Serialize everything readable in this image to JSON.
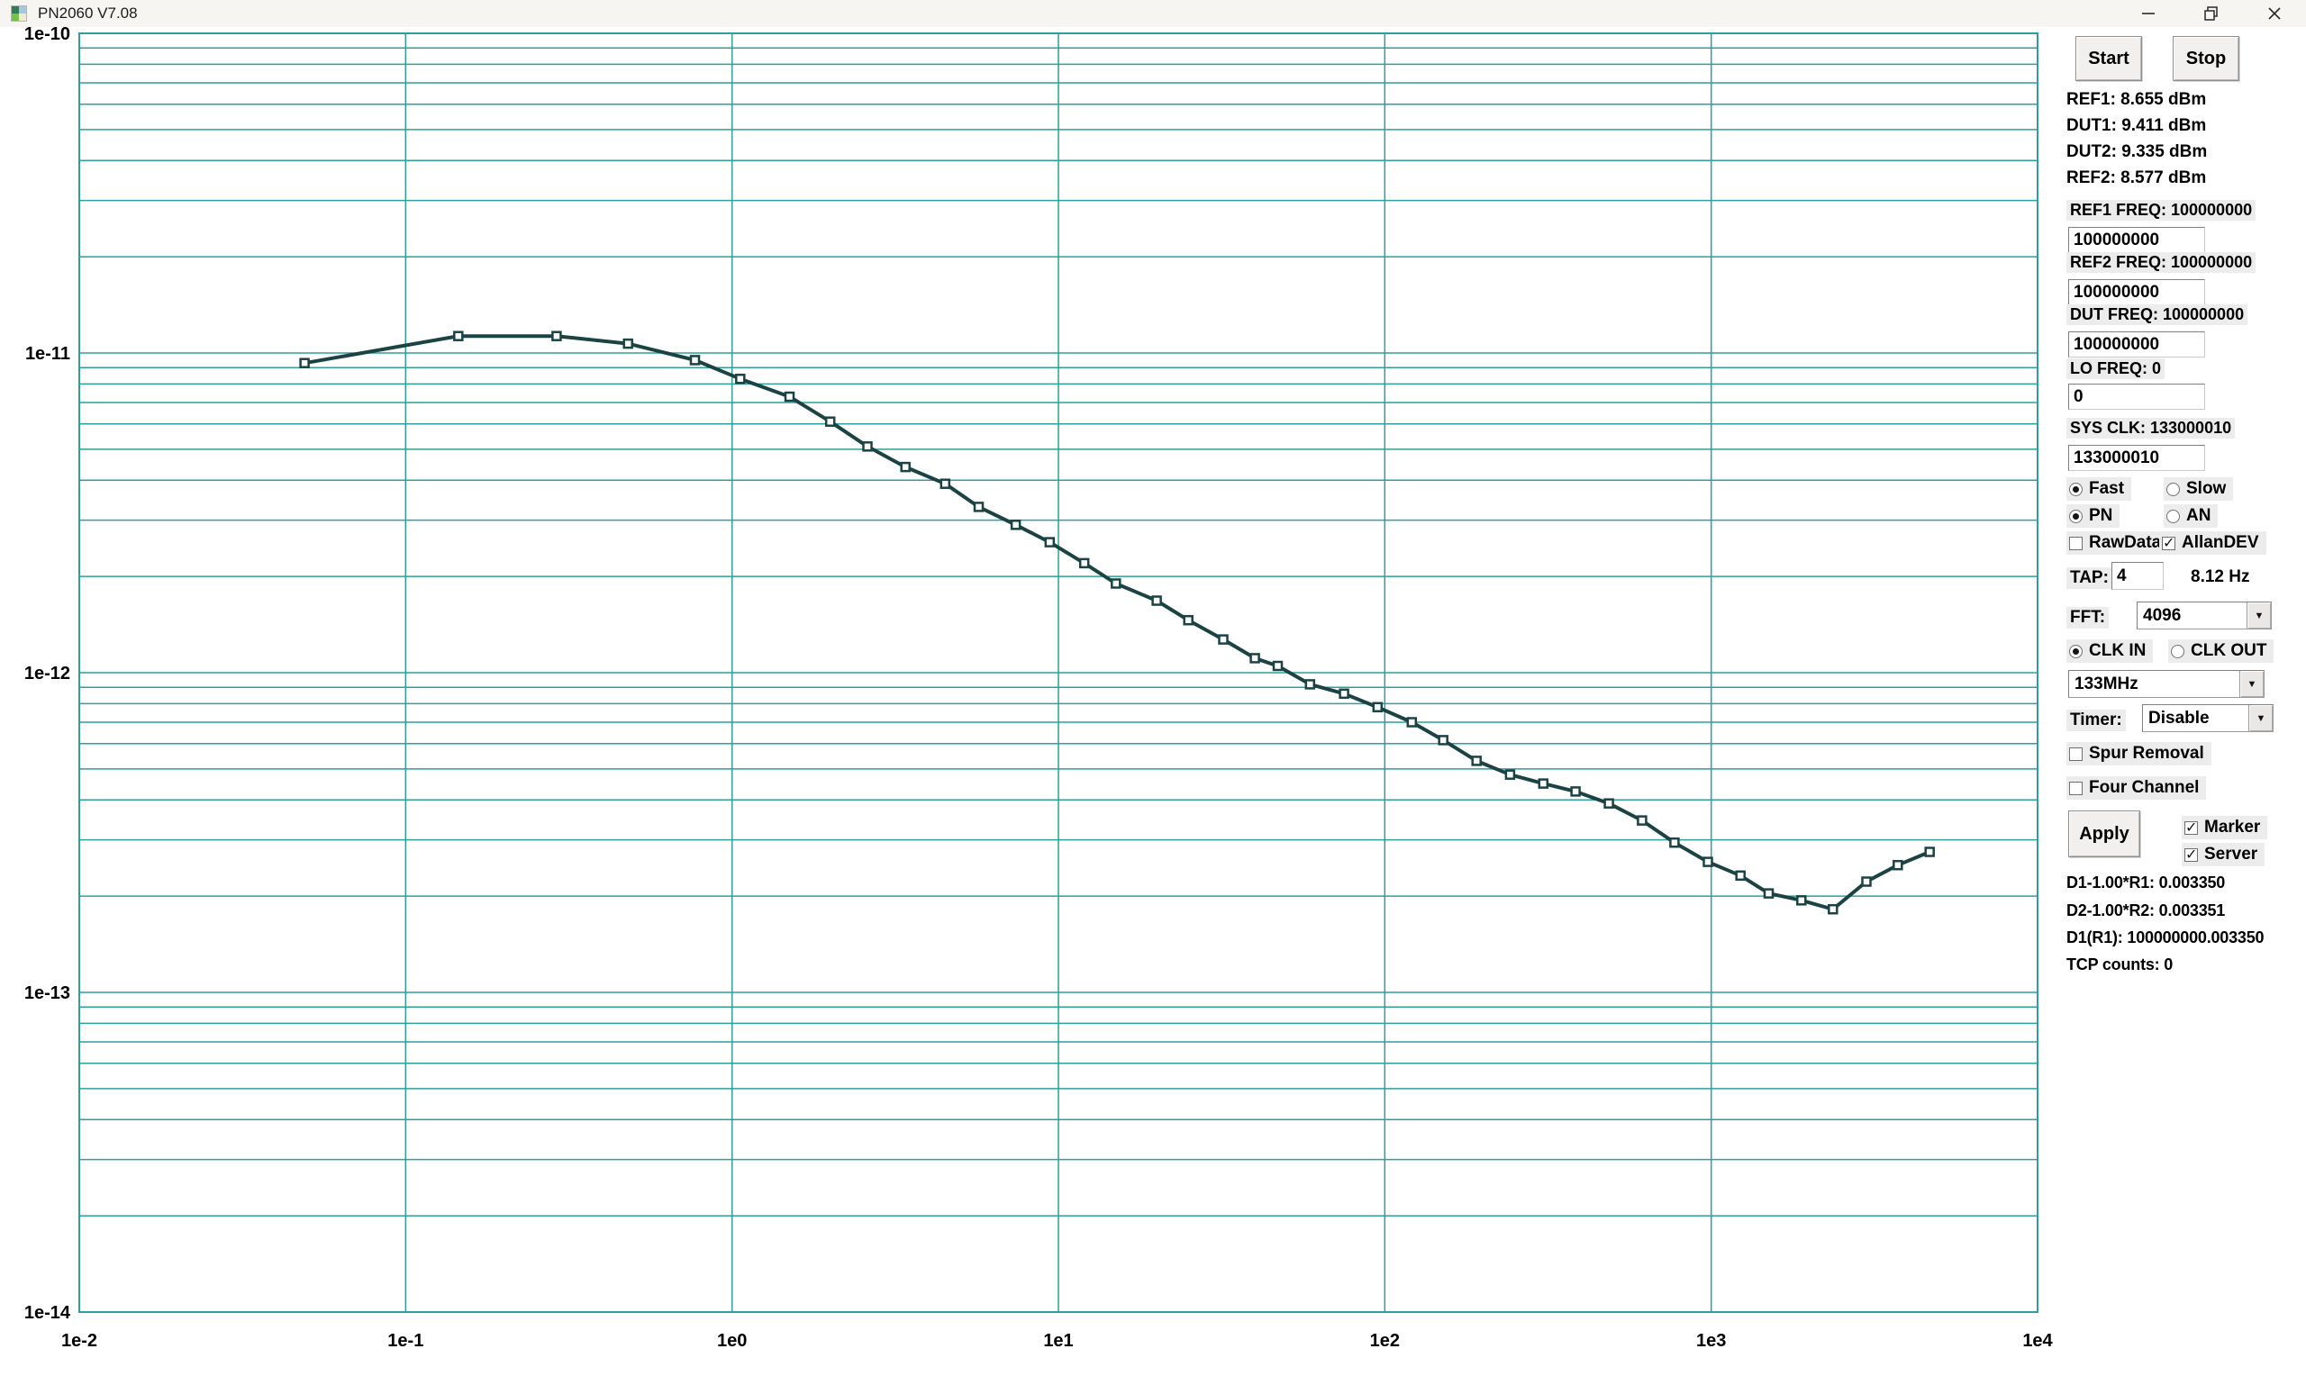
{
  "window": {
    "title": "PN2060 V7.08"
  },
  "panel": {
    "start_label": "Start",
    "stop_label": "Stop",
    "readings": [
      "REF1: 8.655 dBm",
      "DUT1: 9.411 dBm",
      "DUT2: 9.335 dBm",
      "REF2: 8.577 dBm"
    ],
    "freq_fields": [
      {
        "label": "REF1 FREQ: 100000000",
        "value": "100000000"
      },
      {
        "label": "REF2 FREQ: 100000000",
        "value": "100000000"
      },
      {
        "label": "DUT  FREQ: 100000000",
        "value": "100000000"
      },
      {
        "label": "LO FREQ: 0",
        "value": "0"
      },
      {
        "label": "SYS CLK: 133000010",
        "value": "133000010"
      }
    ],
    "options": {
      "fast": {
        "label": "Fast",
        "selected": true
      },
      "slow": {
        "label": "Slow",
        "selected": false
      },
      "pn": {
        "label": "PN",
        "selected": true
      },
      "an": {
        "label": "AN",
        "selected": false
      },
      "rawdata": {
        "label": "RawData",
        "checked": false
      },
      "allandev": {
        "label": "AllanDEV",
        "checked": true
      },
      "clk_in": {
        "label": "CLK IN",
        "selected": true
      },
      "clk_out": {
        "label": "CLK OUT",
        "selected": false
      },
      "spur_removal": {
        "label": "Spur Removal",
        "checked": false
      },
      "four_channel": {
        "label": "Four Channel",
        "checked": false
      },
      "marker": {
        "label": "Marker",
        "checked": true
      },
      "server": {
        "label": "Server",
        "checked": true
      }
    },
    "tap": {
      "label": "TAP:",
      "value": "4",
      "rate": "8.12 Hz"
    },
    "fft": {
      "label": "FFT:",
      "value": "4096"
    },
    "clk_select_value": "133MHz",
    "timer": {
      "label": "Timer:",
      "value": "Disable"
    },
    "apply_label": "Apply",
    "status": [
      "D1-1.00*R1: 0.003350",
      "D2-1.00*R2: 0.003351",
      "D1(R1): 100000000.003350",
      "TCP counts: 0"
    ]
  },
  "chart_data": {
    "type": "line",
    "title": "",
    "xlabel": "",
    "ylabel": "",
    "xscale": "log",
    "yscale": "log",
    "xlim": [
      0.01,
      10000
    ],
    "ylim": [
      1e-14,
      1e-10
    ],
    "xtick_values": [
      0.01,
      0.1,
      1,
      10,
      100,
      1000,
      10000
    ],
    "xtick_labels": [
      "1e-2",
      "1e-1",
      "1e0",
      "1e1",
      "1e2",
      "1e3",
      "1e4"
    ],
    "ytick_values": [
      1e-10,
      1e-11,
      1e-12,
      1e-13,
      1e-14
    ],
    "ytick_labels": [
      "1e-10",
      "1e-11",
      "1e-12",
      "1e-13",
      "1e-14"
    ],
    "grid": "horizontal log-minor lines full width; vertical lines at decades only",
    "grid_color": "#2f9e9e",
    "legend": null,
    "series": [
      {
        "name": "Allan deviation",
        "color": "#1c4343",
        "marker": "square",
        "points": [
          [
            0.049,
            9.3e-12
          ],
          [
            0.145,
            1.13e-11
          ],
          [
            0.29,
            1.13e-11
          ],
          [
            0.48,
            1.07e-11
          ],
          [
            0.77,
            9.5e-12
          ],
          [
            1.06,
            8.3e-12
          ],
          [
            1.5,
            7.3e-12
          ],
          [
            2.0,
            6.1e-12
          ],
          [
            2.6,
            5.1e-12
          ],
          [
            3.4,
            4.4e-12
          ],
          [
            4.5,
            3.9e-12
          ],
          [
            5.7,
            3.3e-12
          ],
          [
            7.4,
            2.9e-12
          ],
          [
            9.4,
            2.56e-12
          ],
          [
            12,
            2.2e-12
          ],
          [
            15,
            1.9e-12
          ],
          [
            20,
            1.68e-12
          ],
          [
            25,
            1.46e-12
          ],
          [
            32,
            1.27e-12
          ],
          [
            40,
            1.11e-12
          ],
          [
            47,
            1.05e-12
          ],
          [
            59,
            9.2e-13
          ],
          [
            75,
            8.6e-13
          ],
          [
            95,
            7.8e-13
          ],
          [
            121,
            7e-13
          ],
          [
            151,
            6.15e-13
          ],
          [
            191,
            5.3e-13
          ],
          [
            242,
            4.8e-13
          ],
          [
            306,
            4.5e-13
          ],
          [
            384,
            4.25e-13
          ],
          [
            486,
            3.9e-13
          ],
          [
            614,
            3.45e-13
          ],
          [
            772,
            2.94e-13
          ],
          [
            977,
            2.56e-13
          ],
          [
            1230,
            2.32e-13
          ],
          [
            1500,
            2.04e-13
          ],
          [
            1890,
            1.94e-13
          ],
          [
            2360,
            1.82e-13
          ],
          [
            2990,
            2.22e-13
          ],
          [
            3730,
            2.5e-13
          ],
          [
            4670,
            2.75e-13
          ]
        ]
      }
    ]
  }
}
